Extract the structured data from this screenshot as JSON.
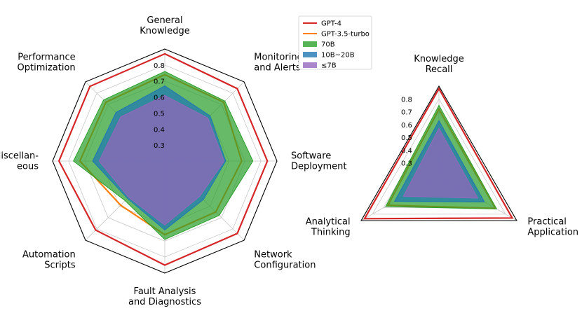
{
  "legend": {
    "placement": "top-center",
    "entries": [
      {
        "name": "GPT-4",
        "color": "#d62728",
        "kind": "line"
      },
      {
        "name": "GPT-3.5-turbo",
        "color": "#ff7f0e",
        "kind": "line"
      },
      {
        "name": "70B",
        "color": "#2ca02c",
        "kind": "patch"
      },
      {
        "name": "10B~20B",
        "color": "#1f77b4",
        "kind": "patch"
      },
      {
        "name": "≤7B",
        "color": "#9467bd",
        "kind": "patch"
      }
    ]
  },
  "chart_data": [
    {
      "type": "radar",
      "axes": [
        "General\nKnowledge",
        "Monitoring\nand Alerts",
        "Software\nDeployment",
        "Network\nConfiguration",
        "Fault Analysis\nand Diagnostics",
        "Automation\nScripts",
        "Miscellan-\neous",
        "Performance\nOptimization"
      ],
      "rticks": [
        "0.3",
        "0.4",
        "0.5",
        "0.6",
        "0.7",
        "0.8"
      ],
      "rlim": [
        0.2,
        0.9
      ],
      "grid": true,
      "series": [
        {
          "name": "GPT-4",
          "color": "#d62728",
          "kind": "line",
          "values": [
            0.87,
            0.84,
            0.84,
            0.84,
            0.85,
            0.81,
            0.86,
            0.86
          ]
        },
        {
          "name": "GPT-3.5-turbo",
          "color": "#ff7f0e",
          "kind": "line",
          "values": [
            0.74,
            0.72,
            0.68,
            0.65,
            0.66,
            0.59,
            0.73,
            0.72
          ]
        },
        {
          "name": "70B",
          "color": "#2ca02c",
          "kind": "fill",
          "values": [
            0.76,
            0.73,
            0.75,
            0.68,
            0.69,
            0.55,
            0.77,
            0.74
          ]
        },
        {
          "name": "10B~20B",
          "color": "#1f77b4",
          "kind": "fill",
          "values": [
            0.67,
            0.6,
            0.58,
            0.54,
            0.63,
            0.53,
            0.65,
            0.63
          ]
        },
        {
          "name": "≤7B",
          "color": "#9467bd",
          "kind": "fill",
          "values": [
            0.61,
            0.58,
            0.57,
            0.51,
            0.6,
            0.52,
            0.61,
            0.59
          ]
        }
      ]
    },
    {
      "type": "radar",
      "axes": [
        "Knowledge\nRecall",
        "Practical\nApplication",
        "Analytical\nThinking"
      ],
      "rticks": [
        "0.3",
        "0.4",
        "0.5",
        "0.6",
        "0.7",
        "0.8"
      ],
      "rlim": [
        0.2,
        0.9
      ],
      "grid": true,
      "series": [
        {
          "name": "GPT-4",
          "color": "#d62728",
          "kind": "line",
          "values": [
            0.88,
            0.86,
            0.87
          ]
        },
        {
          "name": "GPT-3.5-turbo",
          "color": "#ff7f0e",
          "kind": "line",
          "values": [
            0.72,
            0.71,
            0.66
          ]
        },
        {
          "name": "70B",
          "color": "#2ca02c",
          "kind": "fill",
          "values": [
            0.75,
            0.72,
            0.68
          ]
        },
        {
          "name": "10B~20B",
          "color": "#1f77b4",
          "kind": "fill",
          "values": [
            0.63,
            0.61,
            0.6
          ]
        },
        {
          "name": "≤7B",
          "color": "#9467bd",
          "kind": "fill",
          "values": [
            0.57,
            0.55,
            0.52
          ]
        }
      ]
    }
  ]
}
